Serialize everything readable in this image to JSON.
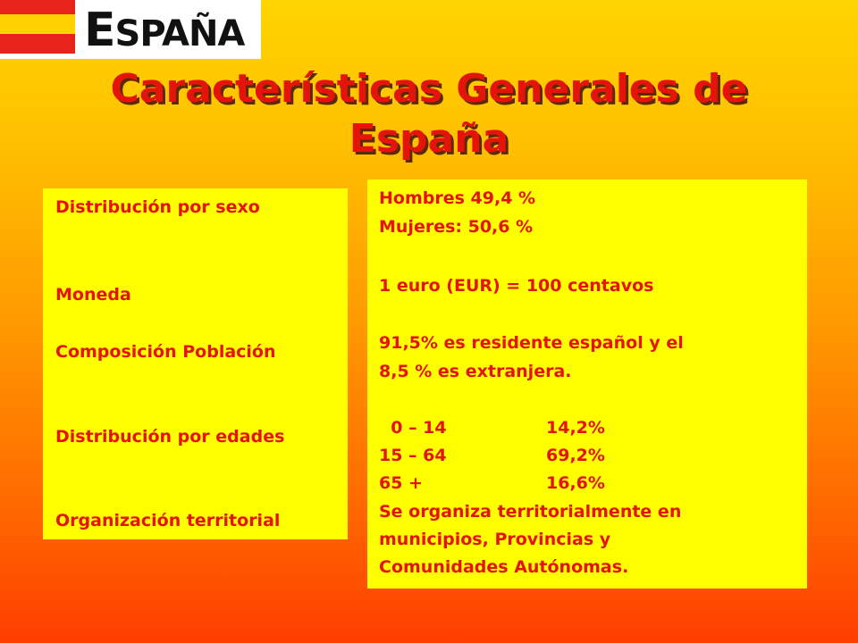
{
  "logo": {
    "word_first": "E",
    "word_rest": "SPAÑA"
  },
  "title": {
    "line1": "Características Generales de",
    "line2": "España"
  },
  "labels": [
    "Distribución por sexo",
    "Moneda",
    "Composición Población",
    "Distribución por edades",
    "Organización territorial"
  ],
  "values": {
    "sexo": [
      "Hombres 49,4 %",
      "Mujeres: 50,6 %"
    ],
    "moneda": "1 euro (EUR) = 100 centavos",
    "poblacion": [
      "91,5% es residente español y el",
      "8,5 % es extranjera."
    ],
    "edades": [
      {
        "range": "  0 – 14",
        "pct": "14,2%"
      },
      {
        "range": "15 – 64",
        "pct": "69,2%"
      },
      {
        "range": "65 +",
        "pct": "16,6%"
      }
    ],
    "territorial": [
      "Se organiza territorialmente en",
      "municipios, Provincias y",
      "Comunidades Autónomas."
    ]
  }
}
